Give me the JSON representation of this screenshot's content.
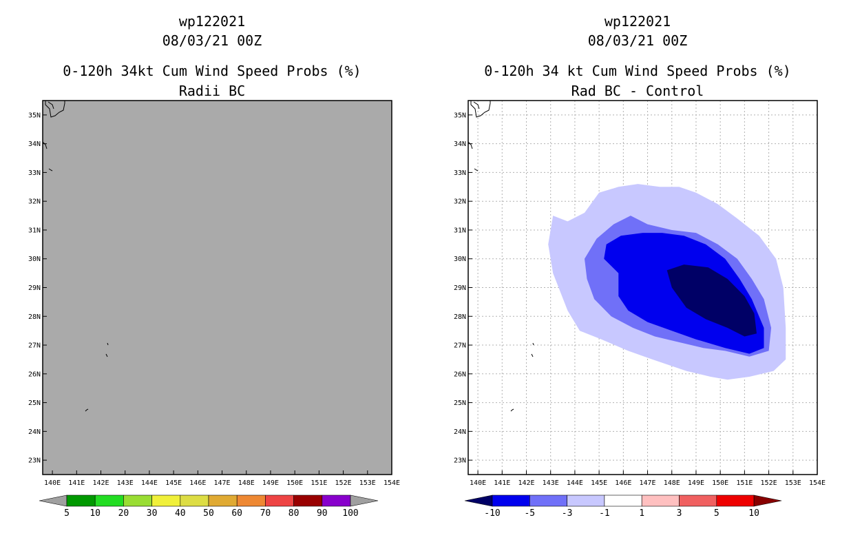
{
  "left_panel": {
    "title_line1": "wp122021",
    "title_line2": "08/03/21 00Z",
    "title_line3": "0-120h 34kt Cum Wind Speed Probs (%)",
    "title_line4": "Radii BC",
    "background_color": "#aaaaaa"
  },
  "right_panel": {
    "title_line1": "wp122021",
    "title_line2": "08/03/21 00Z",
    "title_line3": "0-120h 34 kt Cum Wind Speed Probs (%)",
    "title_line4": "Rad BC - Control"
  },
  "chart_data": [
    {
      "type": "heatmap",
      "title": "0-120h 34kt Cum Wind Speed Probs (%) Radii BC",
      "x_tick_labels": [
        "140E",
        "141E",
        "142E",
        "143E",
        "144E",
        "145E",
        "146E",
        "147E",
        "148E",
        "149E",
        "150E",
        "151E",
        "152E",
        "153E",
        "154E"
      ],
      "y_tick_labels": [
        "23N",
        "24N",
        "25N",
        "26N",
        "27N",
        "28N",
        "29N",
        "30N",
        "31N",
        "32N",
        "33N",
        "34N",
        "35N"
      ],
      "xlim": [
        139.6,
        154.0
      ],
      "ylim": [
        22.5,
        35.5
      ],
      "grid": false,
      "colorbar": {
        "labels": [
          "5",
          "10",
          "20",
          "30",
          "40",
          "50",
          "60",
          "70",
          "80",
          "90",
          "100"
        ],
        "colors": [
          "#a0a0a0",
          "#009900",
          "#22dd22",
          "#99dd33",
          "#f0f03a",
          "#dddd44",
          "#e0aa33",
          "#ee8833",
          "#ee4444",
          "#990000",
          "#8800cc",
          "#a0a0a0"
        ]
      }
    },
    {
      "type": "heatmap",
      "title": "0-120h 34 kt Cum Wind Speed Probs (%) Rad BC - Control",
      "x_tick_labels": [
        "140E",
        "141E",
        "142E",
        "143E",
        "144E",
        "145E",
        "146E",
        "147E",
        "148E",
        "149E",
        "150E",
        "151E",
        "152E",
        "153E",
        "154E"
      ],
      "y_tick_labels": [
        "23N",
        "24N",
        "25N",
        "26N",
        "27N",
        "28N",
        "29N",
        "30N",
        "31N",
        "32N",
        "33N",
        "34N",
        "35N"
      ],
      "xlim": [
        139.6,
        154.0
      ],
      "ylim": [
        22.5,
        35.5
      ],
      "grid": true,
      "contours": [
        {
          "level": "-1",
          "color": "#c8c8ff",
          "points": [
            [
              143.1,
              31.5
            ],
            [
              143.7,
              31.3
            ],
            [
              144.4,
              31.6
            ],
            [
              145.0,
              32.3
            ],
            [
              145.8,
              32.5
            ],
            [
              146.6,
              32.6
            ],
            [
              147.5,
              32.5
            ],
            [
              148.3,
              32.5
            ],
            [
              149.0,
              32.3
            ],
            [
              149.9,
              31.9
            ],
            [
              150.7,
              31.4
            ],
            [
              151.6,
              30.8
            ],
            [
              152.3,
              30.0
            ],
            [
              152.6,
              29.0
            ],
            [
              152.7,
              27.6
            ],
            [
              152.7,
              26.5
            ],
            [
              152.2,
              26.1
            ],
            [
              151.2,
              25.9
            ],
            [
              150.3,
              25.8
            ],
            [
              149.6,
              25.9
            ],
            [
              148.6,
              26.1
            ],
            [
              147.9,
              26.3
            ],
            [
              147.2,
              26.5
            ],
            [
              146.2,
              26.8
            ],
            [
              145.1,
              27.2
            ],
            [
              144.2,
              27.5
            ],
            [
              143.7,
              28.2
            ],
            [
              143.1,
              29.5
            ],
            [
              142.9,
              30.5
            ],
            [
              143.1,
              31.5
            ]
          ]
        },
        {
          "level": "-3",
          "color": "#7070f8",
          "points": [
            [
              144.4,
              30.0
            ],
            [
              144.9,
              30.7
            ],
            [
              145.6,
              31.2
            ],
            [
              146.3,
              31.5
            ],
            [
              147.0,
              31.2
            ],
            [
              148.0,
              31.0
            ],
            [
              149.0,
              30.9
            ],
            [
              149.9,
              30.5
            ],
            [
              150.7,
              30.0
            ],
            [
              151.3,
              29.3
            ],
            [
              151.8,
              28.6
            ],
            [
              152.1,
              27.6
            ],
            [
              152.0,
              26.8
            ],
            [
              151.2,
              26.6
            ],
            [
              150.2,
              26.8
            ],
            [
              149.3,
              26.9
            ],
            [
              148.3,
              27.1
            ],
            [
              147.3,
              27.3
            ],
            [
              146.4,
              27.6
            ],
            [
              145.5,
              28.0
            ],
            [
              144.8,
              28.6
            ],
            [
              144.5,
              29.3
            ],
            [
              144.4,
              30.0
            ]
          ]
        },
        {
          "level": "-5",
          "color": "#0000ee",
          "points": [
            [
              145.2,
              30.0
            ],
            [
              145.3,
              30.5
            ],
            [
              145.9,
              30.8
            ],
            [
              146.8,
              30.9
            ],
            [
              147.6,
              30.9
            ],
            [
              148.5,
              30.8
            ],
            [
              149.4,
              30.5
            ],
            [
              150.2,
              30.0
            ],
            [
              150.8,
              29.3
            ],
            [
              151.3,
              28.6
            ],
            [
              151.8,
              27.6
            ],
            [
              151.8,
              26.9
            ],
            [
              151.2,
              26.7
            ],
            [
              150.2,
              26.9
            ],
            [
              149.0,
              27.2
            ],
            [
              148.0,
              27.5
            ],
            [
              147.0,
              27.8
            ],
            [
              146.2,
              28.2
            ],
            [
              145.8,
              28.7
            ],
            [
              145.8,
              29.5
            ],
            [
              145.2,
              30.0
            ]
          ]
        },
        {
          "level": "-10",
          "color": "#000066",
          "points": [
            [
              147.8,
              29.6
            ],
            [
              148.5,
              29.8
            ],
            [
              149.5,
              29.7
            ],
            [
              150.3,
              29.3
            ],
            [
              151.0,
              28.7
            ],
            [
              151.4,
              28.1
            ],
            [
              151.5,
              27.4
            ],
            [
              151.0,
              27.3
            ],
            [
              150.3,
              27.6
            ],
            [
              149.4,
              27.9
            ],
            [
              148.6,
              28.3
            ],
            [
              148.0,
              29.0
            ],
            [
              147.8,
              29.6
            ]
          ]
        }
      ],
      "colorbar": {
        "labels": [
          "-10",
          "-5",
          "-3",
          "-1",
          "1",
          "3",
          "5",
          "10"
        ],
        "colors": [
          "#000066",
          "#0000ee",
          "#7070f8",
          "#c8c8ff",
          "#ffffff",
          "#ffc0c0",
          "#f06060",
          "#ee0000",
          "#880000"
        ]
      }
    }
  ]
}
